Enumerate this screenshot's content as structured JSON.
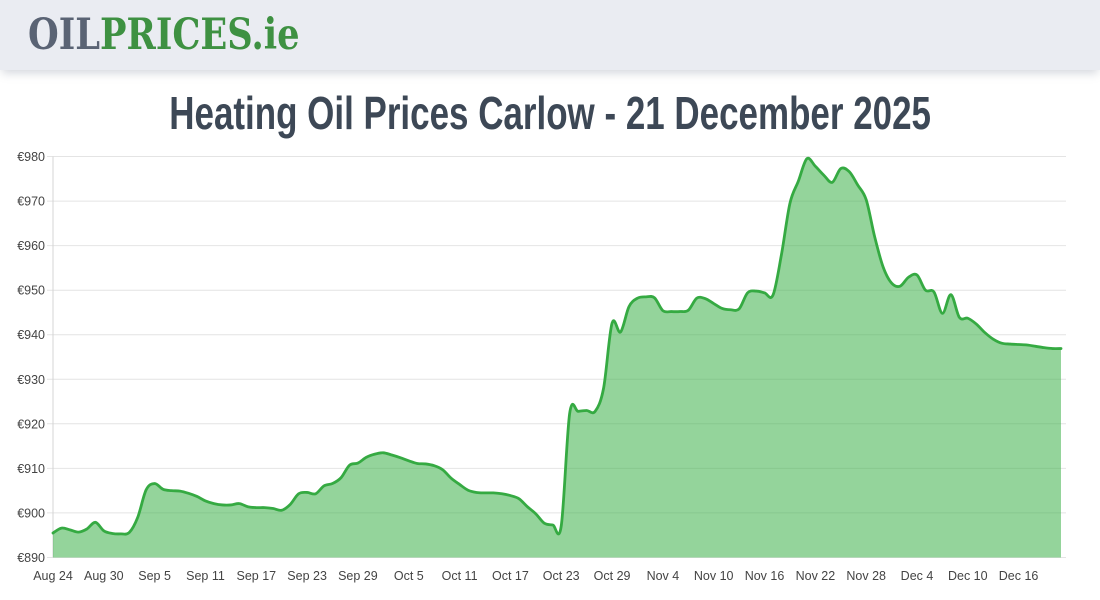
{
  "header": {
    "logo_part_gray": "OIL",
    "logo_part_green": "PRICES",
    "logo_tld": ".ie"
  },
  "page": {
    "title": "Heating Oil Prices Carlow - 21 December 2025"
  },
  "colors": {
    "header_bg": "#eaecf2",
    "logo_gray": "#5a6374",
    "logo_green": "#3e9142",
    "title": "#3d4856",
    "grid": "#e4e4e4",
    "axis_line": "#d4d4d4",
    "tick_label": "#444444",
    "line": "#35aa42",
    "fill": "rgba(61,176,72,0.55)"
  },
  "chart_data": {
    "type": "area",
    "title": "Heating Oil Prices Carlow - 21 December 2025",
    "currency_prefix": "€",
    "ylim": [
      890,
      980
    ],
    "y_ticks": [
      890,
      900,
      910,
      920,
      930,
      940,
      950,
      960,
      970,
      980
    ],
    "grid": true,
    "legend": false,
    "x_tick_interval_days": 6,
    "x_tick_labels": [
      "Aug 24",
      "Aug 30",
      "Sep 5",
      "Sep 11",
      "Sep 17",
      "Sep 23",
      "Sep 29",
      "Oct 5",
      "Oct 11",
      "Oct 17",
      "Oct 23",
      "Oct 29",
      "Nov 4",
      "Nov 10",
      "Nov 16",
      "Nov 22",
      "Nov 28",
      "Dec 4",
      "Dec 10",
      "Dec 16"
    ],
    "dates": [
      "Aug 24",
      "Aug 25",
      "Aug 26",
      "Aug 27",
      "Aug 28",
      "Aug 29",
      "Aug 30",
      "Aug 31",
      "Sep 1",
      "Sep 2",
      "Sep 3",
      "Sep 4",
      "Sep 5",
      "Sep 6",
      "Sep 7",
      "Sep 8",
      "Sep 9",
      "Sep 10",
      "Sep 11",
      "Sep 12",
      "Sep 13",
      "Sep 14",
      "Sep 15",
      "Sep 16",
      "Sep 17",
      "Sep 18",
      "Sep 19",
      "Sep 20",
      "Sep 21",
      "Sep 22",
      "Sep 23",
      "Sep 24",
      "Sep 25",
      "Sep 26",
      "Sep 27",
      "Sep 28",
      "Sep 29",
      "Sep 30",
      "Oct 1",
      "Oct 2",
      "Oct 3",
      "Oct 4",
      "Oct 5",
      "Oct 6",
      "Oct 7",
      "Oct 8",
      "Oct 9",
      "Oct 10",
      "Oct 11",
      "Oct 12",
      "Oct 13",
      "Oct 14",
      "Oct 15",
      "Oct 16",
      "Oct 17",
      "Oct 18",
      "Oct 19",
      "Oct 20",
      "Oct 21",
      "Oct 22",
      "Oct 23",
      "Oct 24",
      "Oct 25",
      "Oct 26",
      "Oct 27",
      "Oct 28",
      "Oct 29",
      "Oct 30",
      "Oct 31",
      "Nov 1",
      "Nov 2",
      "Nov 3",
      "Nov 4",
      "Nov 5",
      "Nov 6",
      "Nov 7",
      "Nov 8",
      "Nov 9",
      "Nov 10",
      "Nov 11",
      "Nov 12",
      "Nov 13",
      "Nov 14",
      "Nov 15",
      "Nov 16",
      "Nov 17",
      "Nov 18",
      "Nov 19",
      "Nov 20",
      "Nov 21",
      "Nov 22",
      "Nov 23",
      "Nov 24",
      "Nov 25",
      "Nov 26",
      "Nov 27",
      "Nov 28",
      "Nov 29",
      "Nov 30",
      "Dec 1",
      "Dec 2",
      "Dec 3",
      "Dec 4",
      "Dec 5",
      "Dec 6",
      "Dec 7",
      "Dec 8",
      "Dec 9",
      "Dec 10",
      "Dec 11",
      "Dec 12",
      "Dec 13",
      "Dec 14",
      "Dec 15",
      "Dec 16",
      "Dec 17",
      "Dec 18",
      "Dec 19",
      "Dec 20",
      "Dec 21"
    ],
    "values": [
      895.5,
      896.6,
      896.2,
      895.7,
      896.4,
      897.9,
      896.0,
      895.4,
      895.3,
      895.6,
      899.0,
      905.2,
      906.6,
      905.3,
      905.0,
      904.9,
      904.4,
      903.7,
      902.7,
      902.1,
      901.8,
      901.8,
      902.1,
      901.4,
      901.2,
      901.2,
      901.0,
      900.6,
      901.9,
      904.3,
      904.6,
      904.3,
      906.1,
      906.6,
      907.9,
      910.7,
      911.2,
      912.5,
      913.2,
      913.5,
      913.0,
      912.4,
      911.7,
      911.1,
      911.0,
      910.6,
      909.7,
      907.8,
      906.4,
      905.1,
      904.6,
      904.5,
      904.5,
      904.3,
      903.9,
      903.2,
      901.4,
      899.8,
      897.7,
      897.3,
      897.1,
      922.4,
      922.8,
      923.0,
      922.8,
      928.0,
      942.6,
      940.6,
      946.3,
      948.2,
      948.5,
      948.3,
      945.4,
      945.2,
      945.2,
      945.5,
      948.2,
      948.1,
      947.0,
      945.9,
      945.6,
      945.8,
      949.4,
      949.8,
      949.4,
      948.9,
      958.0,
      969.5,
      974.5,
      979.5,
      977.8,
      975.8,
      974.2,
      977.3,
      976.6,
      973.6,
      970.3,
      962.0,
      955.2,
      951.6,
      950.9,
      952.9,
      953.4,
      950.0,
      949.6,
      944.8,
      949.0,
      943.9,
      943.7,
      942.4,
      940.5,
      939.0,
      938.1,
      937.9,
      937.8,
      937.7,
      937.4,
      937.1,
      936.9,
      936.9
    ]
  }
}
